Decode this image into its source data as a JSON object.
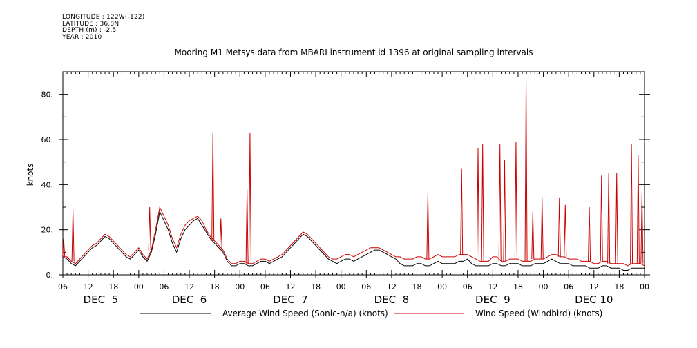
{
  "header": {
    "lines": [
      "LONGITUDE : 122W(-122)",
      "LATITUDE : 36.8N",
      "DEPTH (m) : -2.5",
      "YEAR : 2010"
    ]
  },
  "chart_data": {
    "type": "line",
    "title": "Mooring M1 Metsys data from MBARI instrument id 1396 at original sampling intervals",
    "ylabel": "knots",
    "xlabel": "",
    "x_unit": "hours",
    "xlim": [
      0,
      138
    ],
    "ylim": [
      0,
      90
    ],
    "y_ticks": [
      0,
      20,
      40,
      60,
      80
    ],
    "y_tick_labels": [
      "0.",
      "20.",
      "40.",
      "60.",
      "80."
    ],
    "x_ticks": [
      0,
      6,
      12,
      18,
      24,
      30,
      36,
      42,
      48,
      54,
      60,
      66,
      72,
      78,
      84,
      90,
      96,
      102,
      108,
      114,
      120,
      126,
      132,
      138
    ],
    "x_tick_labels": [
      "06",
      "12",
      "18",
      "00",
      "06",
      "12",
      "18",
      "00",
      "06",
      "12",
      "18",
      "00",
      "06",
      "12",
      "18",
      "00",
      "06",
      "12",
      "18",
      "00",
      "06",
      "12",
      "18",
      "00"
    ],
    "day_labels": [
      {
        "text": "DEC  5",
        "x": 9
      },
      {
        "text": "DEC  6",
        "x": 30
      },
      {
        "text": "DEC  7",
        "x": 54
      },
      {
        "text": "DEC  8",
        "x": 78
      },
      {
        "text": "DEC  9",
        "x": 102
      },
      {
        "text": "DEC 10",
        "x": 126
      }
    ],
    "grid": false,
    "legend": "bottom",
    "series": [
      {
        "name": "Average Wind Speed (Sonic-n/a) (knots)",
        "color": "#000000",
        "x": [
          0,
          1,
          2,
          3,
          4,
          5,
          6,
          7,
          8,
          9,
          10,
          11,
          12,
          13,
          14,
          15,
          16,
          17,
          18,
          19,
          20,
          21,
          22,
          23,
          24,
          25,
          26,
          27,
          28,
          29,
          30,
          31,
          32,
          33,
          34,
          35,
          36,
          37,
          38,
          39,
          40,
          41,
          42,
          43,
          44,
          45,
          46,
          47,
          48,
          49,
          50,
          51,
          52,
          53,
          54,
          55,
          56,
          57,
          58,
          59,
          60,
          61,
          62,
          63,
          64,
          65,
          66,
          67,
          68,
          69,
          70,
          71,
          72,
          73,
          74,
          75,
          76,
          77,
          78,
          79,
          80,
          81,
          82,
          83,
          84,
          85,
          86,
          87,
          88,
          89,
          90,
          91,
          92,
          93,
          94,
          95,
          96,
          97,
          98,
          99,
          100,
          101,
          102,
          103,
          104,
          105,
          106,
          107,
          108,
          109,
          110,
          111,
          112,
          113,
          114,
          115,
          116,
          117,
          118,
          119,
          120,
          121,
          122,
          123,
          124,
          125,
          126,
          127,
          128,
          129,
          130,
          131,
          132,
          133,
          134,
          135,
          136,
          137,
          138
        ],
        "values": [
          8,
          7,
          5,
          4,
          6,
          8,
          10,
          12,
          13,
          15,
          17,
          16,
          14,
          12,
          10,
          8,
          7,
          9,
          11,
          8,
          6,
          10,
          18,
          28,
          24,
          20,
          14,
          10,
          16,
          20,
          22,
          24,
          25,
          22,
          19,
          16,
          14,
          12,
          10,
          6,
          4,
          4,
          5,
          5,
          4,
          4,
          5,
          6,
          6,
          5,
          6,
          7,
          8,
          10,
          12,
          14,
          16,
          18,
          17,
          15,
          13,
          11,
          9,
          7,
          6,
          5,
          6,
          7,
          7,
          6,
          7,
          8,
          9,
          10,
          11,
          11,
          10,
          9,
          8,
          7,
          5,
          4,
          4,
          4,
          5,
          5,
          4,
          4,
          5,
          6,
          5,
          5,
          5,
          5,
          6,
          6,
          7,
          5,
          4,
          4,
          4,
          4,
          5,
          5,
          4,
          4,
          5,
          5,
          5,
          4,
          4,
          4,
          5,
          5,
          5,
          6,
          7,
          6,
          5,
          5,
          5,
          4,
          4,
          4,
          4,
          3,
          3,
          3,
          4,
          4,
          3,
          3,
          3,
          2,
          2,
          3,
          3,
          3,
          3
        ]
      },
      {
        "name": "Wind Speed (Windbird) (knots)",
        "color": "#cc0000",
        "x": [
          0,
          1,
          2,
          3,
          4,
          5,
          6,
          7,
          8,
          9,
          10,
          11,
          12,
          13,
          14,
          15,
          16,
          17,
          18,
          19,
          20,
          21,
          22,
          23,
          24,
          25,
          26,
          27,
          28,
          29,
          30,
          31,
          32,
          33,
          34,
          35,
          36,
          37,
          38,
          39,
          40,
          41,
          42,
          43,
          44,
          45,
          46,
          47,
          48,
          49,
          50,
          51,
          52,
          53,
          54,
          55,
          56,
          57,
          58,
          59,
          60,
          61,
          62,
          63,
          64,
          65,
          66,
          67,
          68,
          69,
          70,
          71,
          72,
          73,
          74,
          75,
          76,
          77,
          78,
          79,
          80,
          81,
          82,
          83,
          84,
          85,
          86,
          87,
          88,
          89,
          90,
          91,
          92,
          93,
          94,
          95,
          96,
          97,
          98,
          99,
          100,
          101,
          102,
          103,
          104,
          105,
          106,
          107,
          108,
          109,
          110,
          111,
          112,
          113,
          114,
          115,
          116,
          117,
          118,
          119,
          120,
          121,
          122,
          123,
          124,
          125,
          126,
          127,
          128,
          129,
          130,
          131,
          132,
          133,
          134,
          135,
          136,
          137,
          138
        ],
        "values": [
          8,
          8,
          6,
          5,
          7,
          9,
          11,
          13,
          14,
          16,
          18,
          17,
          15,
          13,
          11,
          9,
          8,
          10,
          12,
          9,
          7,
          11,
          20,
          30,
          26,
          22,
          16,
          12,
          18,
          22,
          24,
          25,
          26,
          24,
          20,
          17,
          15,
          13,
          11,
          7,
          5,
          5,
          6,
          6,
          5,
          5,
          6,
          7,
          7,
          6,
          7,
          8,
          9,
          11,
          13,
          15,
          17,
          19,
          18,
          16,
          14,
          12,
          10,
          8,
          7,
          7,
          8,
          9,
          9,
          8,
          9,
          10,
          11,
          12,
          12,
          12,
          11,
          10,
          9,
          8,
          8,
          7,
          7,
          7,
          8,
          8,
          7,
          7,
          8,
          9,
          8,
          8,
          8,
          8,
          9,
          9,
          9,
          8,
          7,
          6,
          6,
          6,
          8,
          8,
          6,
          6,
          7,
          7,
          7,
          6,
          6,
          6,
          7,
          7,
          7,
          8,
          9,
          9,
          8,
          8,
          7,
          7,
          7,
          6,
          6,
          6,
          5,
          5,
          6,
          6,
          5,
          5,
          5,
          5,
          4,
          5,
          5,
          5,
          4
        ]
      },
      {
        "name": "Wind Speed (Windbird) spikes",
        "color": "#cc0000",
        "x": [
          0.2,
          2.4,
          20.6,
          35.6,
          37.5,
          43.7,
          44.4,
          86.6,
          94.6,
          98.5,
          99.6,
          103.7,
          104.8,
          107.5,
          109.9,
          111.5,
          113.7,
          117.8,
          119.2,
          124.9,
          127.8,
          129.5,
          131.4,
          134.9,
          136.5,
          137.4
        ],
        "values": [
          16,
          29,
          30,
          63,
          25,
          38,
          63,
          36,
          47,
          56,
          58,
          58,
          51,
          59,
          87,
          28,
          34,
          34,
          31,
          30,
          44,
          45,
          45,
          58,
          53,
          36
        ]
      }
    ]
  }
}
